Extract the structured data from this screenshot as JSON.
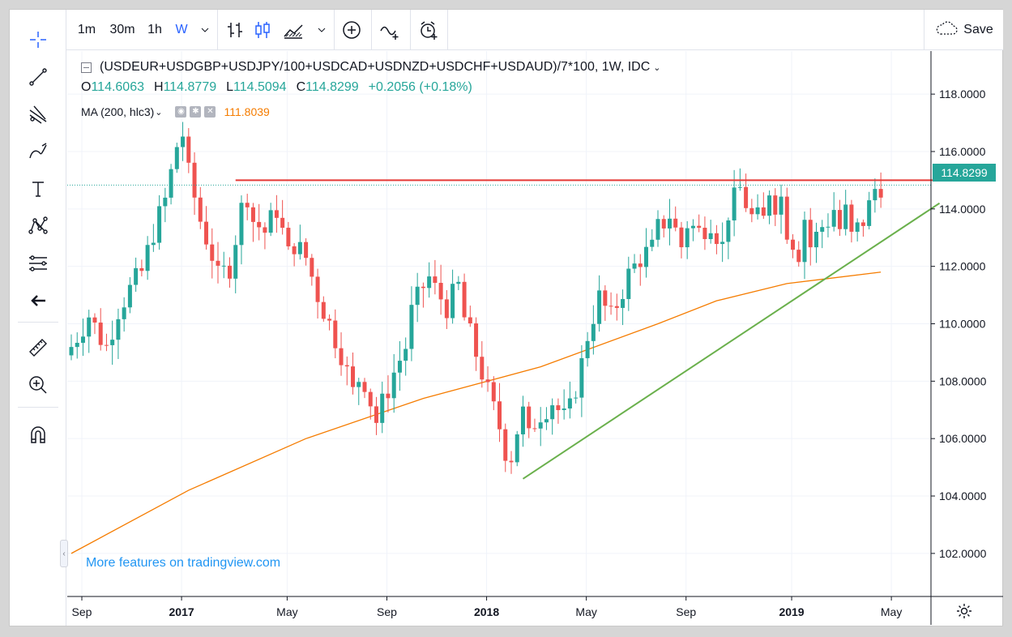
{
  "toolbar": {
    "intervals": [
      "1m",
      "30m",
      "1h",
      "W"
    ],
    "active_interval": "W",
    "save_label": "Save"
  },
  "legend": {
    "symbol": "(USDEUR+USDGBP+USDJPY/100+USDCAD+USDNZD+USDCHF+USDAUD)/7*100, 1W, IDC",
    "o_label": "O",
    "o_value": "114.6063",
    "h_label": "H",
    "h_value": "114.8779",
    "l_label": "L",
    "l_value": "114.5094",
    "c_label": "C",
    "c_value": "114.8299",
    "change": "+0.2056 (+0.18%)",
    "ma_label": "MA (200, hlc3)",
    "ma_value": "111.8039"
  },
  "watermark": "More features on tradingview.com",
  "last_price_label": "114.8299",
  "colors": {
    "up": "#26a69a",
    "down": "#ef5350",
    "ma": "#f57c00",
    "resistance": "#e53935",
    "trendline": "#6ab04c",
    "accent": "#2962ff"
  },
  "chart_data": {
    "type": "candlestick",
    "y_ticks": [
      "118.0000",
      "116.0000",
      "114.0000",
      "112.0000",
      "110.0000",
      "108.0000",
      "106.0000",
      "104.0000",
      "102.0000"
    ],
    "y_tick_values": [
      118,
      116,
      114,
      112,
      110,
      108,
      106,
      104,
      102
    ],
    "ylim": [
      100.5,
      119.5
    ],
    "x_ticks": [
      {
        "label": "Sep",
        "bold": false
      },
      {
        "label": "2017",
        "bold": true
      },
      {
        "label": "May",
        "bold": false
      },
      {
        "label": "Sep",
        "bold": false
      },
      {
        "label": "2018",
        "bold": true
      },
      {
        "label": "May",
        "bold": false
      },
      {
        "label": "Sep",
        "bold": false
      },
      {
        "label": "2019",
        "bold": true
      },
      {
        "label": "May",
        "bold": false
      }
    ],
    "x_tick_week_index": [
      0,
      17,
      35,
      52,
      69,
      86,
      103,
      121,
      138
    ],
    "close_path": [
      [
        0,
        109.2
      ],
      [
        3,
        110.3
      ],
      [
        5,
        109.5
      ],
      [
        6,
        109.2
      ],
      [
        8,
        110.5
      ],
      [
        10,
        111.2
      ],
      [
        12,
        111.8
      ],
      [
        14,
        113.2
      ],
      [
        16,
        114.3
      ],
      [
        18,
        116.2
      ],
      [
        19,
        116.6
      ],
      [
        20,
        115.2
      ],
      [
        22,
        113.6
      ],
      [
        24,
        112.4
      ],
      [
        25,
        111.6
      ],
      [
        27,
        112.0
      ],
      [
        28,
        113.0
      ],
      [
        29,
        114.0
      ],
      [
        30,
        114.5
      ],
      [
        31,
        113.6
      ],
      [
        33,
        113.2
      ],
      [
        35,
        114.0
      ],
      [
        36,
        113.2
      ],
      [
        37,
        112.4
      ],
      [
        38,
        112.8
      ],
      [
        40,
        112.3
      ],
      [
        42,
        111.0
      ],
      [
        44,
        110.0
      ],
      [
        46,
        109.0
      ],
      [
        47,
        108.3
      ],
      [
        48,
        107.6
      ],
      [
        49,
        108.1
      ],
      [
        50,
        108.0
      ],
      [
        52,
        106.6
      ],
      [
        53,
        107.2
      ],
      [
        55,
        108.3
      ],
      [
        57,
        109.2
      ],
      [
        58,
        110.4
      ],
      [
        60,
        111.3
      ],
      [
        61,
        111.6
      ],
      [
        62,
        111.2
      ],
      [
        64,
        110.6
      ],
      [
        66,
        111.3
      ],
      [
        67,
        110.2
      ],
      [
        68,
        109.6
      ],
      [
        70,
        108.3
      ],
      [
        71,
        107.6
      ],
      [
        73,
        106.4
      ],
      [
        74,
        105.6
      ],
      [
        75,
        105.4
      ],
      [
        76,
        106.3
      ],
      [
        77,
        106.9
      ],
      [
        78,
        106.0
      ],
      [
        79,
        106.6
      ],
      [
        80,
        106.9
      ],
      [
        82,
        107.3
      ],
      [
        84,
        106.7
      ],
      [
        85,
        107.0
      ],
      [
        86,
        107.8
      ],
      [
        87,
        108.6
      ],
      [
        88,
        109.6
      ],
      [
        89,
        110.3
      ],
      [
        90,
        110.9
      ],
      [
        92,
        110.2
      ],
      [
        94,
        111.2
      ],
      [
        95,
        111.7
      ],
      [
        97,
        112.3
      ],
      [
        99,
        112.6
      ],
      [
        100,
        113.3
      ],
      [
        102,
        113.8
      ],
      [
        104,
        112.7
      ],
      [
        105,
        113.5
      ],
      [
        107,
        113.2
      ],
      [
        109,
        113.6
      ],
      [
        111,
        112.7
      ],
      [
        112,
        113.9
      ],
      [
        113,
        114.3
      ],
      [
        114,
        114.7
      ],
      [
        116,
        113.7
      ],
      [
        118,
        113.6
      ],
      [
        119,
        114.7
      ],
      [
        120,
        114.2
      ],
      [
        121,
        114.4
      ],
      [
        122,
        113.3
      ],
      [
        124,
        112.5
      ],
      [
        125,
        113.7
      ],
      [
        126,
        112.7
      ],
      [
        128,
        113.4
      ],
      [
        129,
        113.6
      ],
      [
        130,
        114.0
      ],
      [
        131,
        113.3
      ],
      [
        132,
        113.9
      ],
      [
        133,
        113.0
      ],
      [
        135,
        113.6
      ],
      [
        136,
        114.1
      ],
      [
        137,
        114.7
      ],
      [
        138,
        114.83
      ]
    ],
    "ma_path": [
      [
        0,
        102.0
      ],
      [
        20,
        104.2
      ],
      [
        40,
        106.0
      ],
      [
        60,
        107.4
      ],
      [
        80,
        108.5
      ],
      [
        100,
        110.0
      ],
      [
        110,
        110.8
      ],
      [
        122,
        111.4
      ],
      [
        138,
        111.8
      ]
    ],
    "horizontal_line": {
      "value": 115.0,
      "from_week": 28,
      "to_week": 147
    },
    "trendline": {
      "from": [
        77,
        104.6
      ],
      "to": [
        148,
        114.2
      ]
    },
    "last_price": 114.8299,
    "grid": true
  }
}
